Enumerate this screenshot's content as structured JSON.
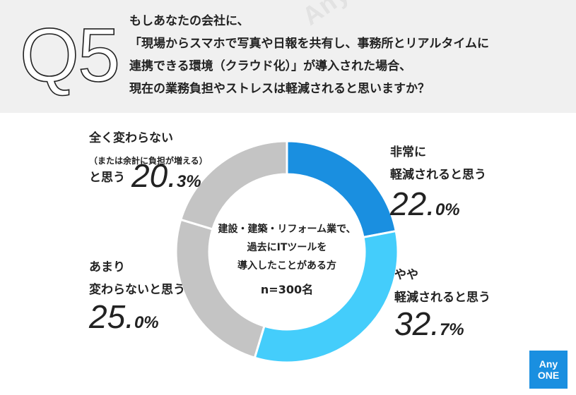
{
  "question": {
    "label": "Q5",
    "lines": [
      "もしあなたの会社に、",
      "「現場からスマホで写真や日報を共有し、事務所とリアルタイムに",
      "連携できる環境（クラウド化）」が導入された場合、",
      "現在の業務負担やストレスは軽減されると思いますか？"
    ]
  },
  "watermark": "AnyONE AnyONE AnyONE",
  "center": {
    "lines": [
      "建設・建築・リフォーム業で、",
      "過去にITツールを",
      "導入したことがある方"
    ],
    "n": "n=300名"
  },
  "logo": {
    "line1": "Any",
    "line2": "ONE"
  },
  "colors": {
    "header_bg": "#f0f0f0",
    "dark_blue": "#1a8fe0",
    "light_blue": "#44cdfb",
    "gray": "#c4c4c4"
  },
  "chart_data": {
    "type": "pie",
    "donut": true,
    "slices": [
      {
        "label": "非常に軽減されると思う",
        "value": 22.0,
        "color": "#1a8fe0"
      },
      {
        "label": "やや軽減されると思う",
        "value": 32.7,
        "color": "#44cdfb"
      },
      {
        "label": "あまり変わらないと思う",
        "value": 25.0,
        "color": "#c4c4c4"
      },
      {
        "label": "全く変わらない（または余計に負担が増える）と思う",
        "value": 20.3,
        "color": "#c4c4c4"
      }
    ]
  },
  "labels": {
    "very": {
      "lines": [
        "非常に",
        "軽減されると思う"
      ],
      "pct_main": "22.",
      "pct_dec": "0%"
    },
    "somewhat": {
      "lines": [
        "やや",
        "軽減されると思う"
      ],
      "pct_main": "32.",
      "pct_dec": "7%"
    },
    "notmuch": {
      "lines": [
        "あまり",
        "変わらないと思う"
      ],
      "pct_main": "25.",
      "pct_dec": "0%"
    },
    "notatall": {
      "line1": "全く変わらない",
      "line2": "（または余計に負担が増える）",
      "line3": "と思う",
      "pct_main": "20.",
      "pct_dec": "3%"
    }
  }
}
